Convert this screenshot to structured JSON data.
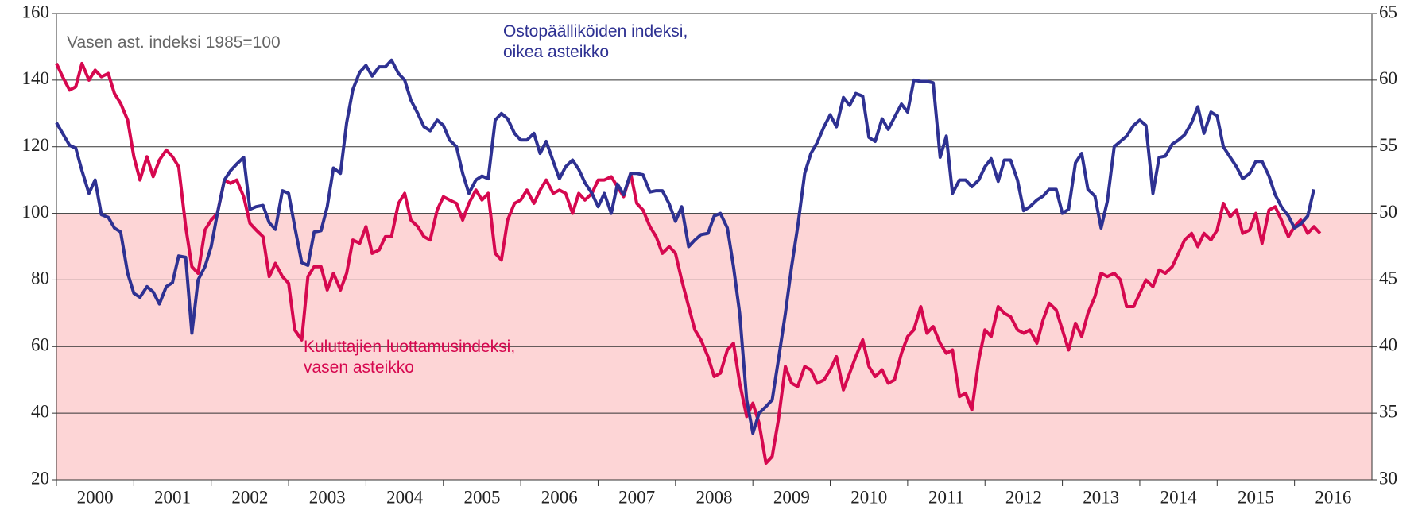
{
  "chart_data": {
    "type": "line",
    "annotations": [
      {
        "text": [
          "Vasen ast. indeksi 1985=100"
        ],
        "color": "#666666"
      },
      {
        "text": [
          "Ostopäälliköiden indeksi,",
          "oikea asteikko"
        ],
        "color": "#2e3192"
      },
      {
        "text": [
          "Kuluttajien luottamusindeksi,",
          "vasen asteikko"
        ],
        "color": "#d6084f"
      }
    ],
    "xlim": [
      2000,
      2017
    ],
    "xticks": [
      2000,
      2001,
      2002,
      2003,
      2004,
      2005,
      2006,
      2007,
      2008,
      2009,
      2010,
      2011,
      2012,
      2013,
      2014,
      2015,
      2016
    ],
    "ylim": [
      20,
      160
    ],
    "yticks": [
      20,
      40,
      60,
      80,
      100,
      120,
      140,
      160
    ],
    "y2lim": [
      30,
      65
    ],
    "y2ticks": [
      30,
      35,
      40,
      45,
      50,
      55,
      60,
      65
    ],
    "grid": true,
    "shade_below": 100,
    "shade_color": "#fdd5d6",
    "x": [
      2000.0,
      2000.08,
      2000.17,
      2000.25,
      2000.33,
      2000.42,
      2000.5,
      2000.58,
      2000.67,
      2000.75,
      2000.83,
      2000.92,
      2001.0,
      2001.08,
      2001.17,
      2001.25,
      2001.33,
      2001.42,
      2001.5,
      2001.58,
      2001.67,
      2001.75,
      2001.83,
      2001.92,
      2002.0,
      2002.08,
      2002.17,
      2002.25,
      2002.33,
      2002.42,
      2002.5,
      2002.58,
      2002.67,
      2002.75,
      2002.83,
      2002.92,
      2003.0,
      2003.08,
      2003.17,
      2003.25,
      2003.33,
      2003.42,
      2003.5,
      2003.58,
      2003.67,
      2003.75,
      2003.83,
      2003.92,
      2004.0,
      2004.08,
      2004.17,
      2004.25,
      2004.33,
      2004.42,
      2004.5,
      2004.58,
      2004.67,
      2004.75,
      2004.83,
      2004.92,
      2005.0,
      2005.08,
      2005.17,
      2005.25,
      2005.33,
      2005.42,
      2005.5,
      2005.58,
      2005.67,
      2005.75,
      2005.83,
      2005.92,
      2006.0,
      2006.08,
      2006.17,
      2006.25,
      2006.33,
      2006.42,
      2006.5,
      2006.58,
      2006.67,
      2006.75,
      2006.83,
      2006.92,
      2007.0,
      2007.08,
      2007.17,
      2007.25,
      2007.33,
      2007.42,
      2007.5,
      2007.58,
      2007.67,
      2007.75,
      2007.83,
      2007.92,
      2008.0,
      2008.08,
      2008.17,
      2008.25,
      2008.33,
      2008.42,
      2008.5,
      2008.58,
      2008.67,
      2008.75,
      2008.83,
      2008.92,
      2009.0,
      2009.08,
      2009.17,
      2009.25,
      2009.33,
      2009.42,
      2009.5,
      2009.58,
      2009.67,
      2009.75,
      2009.83,
      2009.92,
      2010.0,
      2010.08,
      2010.17,
      2010.25,
      2010.33,
      2010.42,
      2010.5,
      2010.58,
      2010.67,
      2010.75,
      2010.83,
      2010.92,
      2011.0,
      2011.08,
      2011.17,
      2011.25,
      2011.33,
      2011.42,
      2011.5,
      2011.58,
      2011.67,
      2011.75,
      2011.83,
      2011.92,
      2012.0,
      2012.08,
      2012.17,
      2012.25,
      2012.33,
      2012.42,
      2012.5,
      2012.58,
      2012.67,
      2012.75,
      2012.83,
      2012.92,
      2013.0,
      2013.08,
      2013.17,
      2013.25,
      2013.33,
      2013.42,
      2013.5,
      2013.58,
      2013.67,
      2013.75,
      2013.83,
      2013.92,
      2014.0,
      2014.08,
      2014.17,
      2014.25,
      2014.33,
      2014.42,
      2014.5,
      2014.58,
      2014.67,
      2014.75,
      2014.83,
      2014.92,
      2015.0,
      2015.08,
      2015.17,
      2015.25,
      2015.33,
      2015.42,
      2015.5,
      2015.58,
      2015.67,
      2015.75,
      2015.83,
      2015.92,
      2016.0,
      2016.08,
      2016.17,
      2016.25,
      2016.33
    ],
    "series": [
      {
        "name": "Kuluttajien luottamusindeksi",
        "color": "#d6084f",
        "values": [
          145,
          141,
          137,
          138,
          145,
          140,
          143,
          141,
          142,
          136,
          133,
          128,
          117,
          110,
          117,
          111,
          116,
          119,
          117,
          114,
          96,
          84,
          82,
          95,
          98,
          100,
          110,
          109,
          110,
          105,
          97,
          95,
          93,
          81,
          85,
          81,
          79,
          65,
          62,
          81,
          84,
          84,
          77,
          82,
          77,
          82,
          92,
          91,
          96,
          88,
          89,
          93,
          93,
          103,
          106,
          98,
          96,
          93,
          92,
          101,
          105,
          104,
          103,
          98,
          103,
          107,
          104,
          106,
          88,
          86,
          98,
          103,
          104,
          107,
          103,
          107,
          110,
          106,
          107,
          106,
          100,
          106,
          104,
          106,
          110,
          110,
          111,
          108,
          105,
          112,
          103,
          101,
          96,
          93,
          88,
          90,
          88,
          80,
          72,
          65,
          62,
          57,
          51,
          52,
          59,
          61,
          49,
          39,
          43,
          37,
          25,
          27,
          38,
          54,
          49,
          48,
          54,
          53,
          49,
          50,
          53,
          57,
          47,
          52,
          57,
          62,
          54,
          51,
          53,
          49,
          50,
          58,
          63,
          65,
          72,
          64,
          66,
          61,
          58,
          59,
          45,
          46,
          41,
          56,
          65,
          63,
          72,
          70,
          69,
          65,
          64,
          65,
          61,
          68,
          73,
          71,
          65,
          59,
          67,
          63,
          70,
          75,
          82,
          81,
          82,
          80,
          72,
          72,
          76,
          80,
          78,
          83,
          82,
          84,
          88,
          92,
          94,
          90,
          94,
          92,
          95,
          103,
          99,
          101,
          94,
          95,
          100,
          91,
          101,
          102,
          98,
          93,
          96,
          98,
          94,
          96,
          94
        ]
      },
      {
        "name": "Ostopäälliköiden indeksi",
        "color": "#2e3192",
        "axis": "y2",
        "values": [
          56.8,
          56.0,
          55.1,
          54.9,
          53.2,
          51.5,
          52.5,
          49.9,
          49.7,
          48.9,
          48.6,
          45.5,
          44.0,
          43.7,
          44.5,
          44.1,
          43.2,
          44.5,
          44.8,
          46.8,
          46.7,
          41.0,
          45.0,
          46.0,
          47.5,
          50.0,
          52.5,
          53.2,
          53.7,
          54.2,
          50.3,
          50.5,
          50.6,
          49.3,
          48.8,
          51.7,
          51.5,
          49.0,
          46.3,
          46.1,
          48.6,
          48.7,
          50.5,
          53.4,
          53.0,
          56.8,
          59.3,
          60.6,
          61.1,
          60.3,
          61.0,
          61.0,
          61.5,
          60.5,
          60.0,
          58.5,
          57.5,
          56.5,
          56.2,
          57.0,
          56.6,
          55.5,
          55.0,
          53.0,
          51.5,
          52.5,
          52.8,
          52.6,
          57.0,
          57.5,
          57.1,
          56.0,
          55.5,
          55.5,
          56.0,
          54.5,
          55.4,
          53.9,
          52.6,
          53.5,
          54.0,
          53.3,
          52.3,
          51.5,
          50.5,
          51.5,
          50.0,
          52.2,
          51.4,
          53.0,
          53.0,
          52.9,
          51.6,
          51.7,
          51.7,
          50.7,
          49.4,
          50.5,
          47.5,
          48.0,
          48.4,
          48.5,
          49.8,
          50.0,
          48.9,
          46.0,
          42.5,
          36.0,
          33.5,
          35.0,
          35.5,
          36.0,
          39.0,
          42.5,
          46.0,
          49.0,
          53.0,
          54.5,
          55.3,
          56.5,
          57.4,
          56.5,
          58.7,
          58.1,
          59.0,
          58.8,
          55.7,
          55.4,
          57.1,
          56.3,
          57.2,
          58.2,
          57.6,
          60.0,
          59.9,
          59.9,
          59.8,
          54.2,
          55.8,
          51.5,
          52.5,
          52.5,
          52.0,
          52.5,
          53.5,
          54.1,
          52.4,
          54.0,
          54.0,
          52.5,
          50.2,
          50.5,
          51.0,
          51.3,
          51.8,
          51.8,
          50.0,
          50.3,
          53.8,
          54.5,
          51.8,
          51.3,
          48.9,
          50.9,
          55.0,
          55.4,
          55.8,
          56.6,
          57.0,
          56.6,
          51.5,
          54.2,
          54.3,
          55.2,
          55.5,
          55.9,
          56.8,
          58.0,
          56.0,
          57.6,
          57.3,
          55.0,
          54.2,
          53.5,
          52.6,
          53.0,
          53.9,
          53.9,
          52.8,
          51.4,
          50.5,
          49.8,
          48.9,
          49.2,
          49.8,
          51.8,
          null
        ]
      }
    ]
  }
}
